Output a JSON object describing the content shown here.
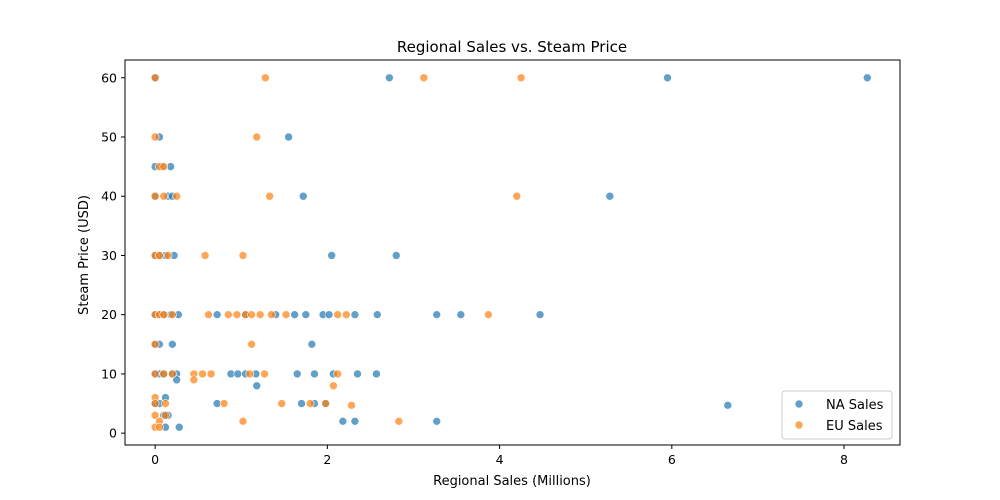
{
  "chart_data": {
    "type": "scatter",
    "title": "Regional Sales vs. Steam Price",
    "xlabel": "Regional Sales (Millions)",
    "ylabel": "Steam Price (USD)",
    "xlim": [
      -0.35,
      8.65
    ],
    "ylim": [
      -2,
      63
    ],
    "xticks": [
      0,
      2,
      4,
      6,
      8
    ],
    "yticks": [
      0,
      10,
      20,
      30,
      40,
      50,
      60
    ],
    "grid": false,
    "legend_position": "lower right",
    "series": [
      {
        "name": "NA Sales",
        "color": "#1f77b4",
        "points": [
          [
            0.0,
            60
          ],
          [
            8.27,
            60
          ],
          [
            5.95,
            60
          ],
          [
            2.72,
            60
          ],
          [
            0.05,
            50
          ],
          [
            1.55,
            50
          ],
          [
            0.0,
            45
          ],
          [
            0.08,
            45
          ],
          [
            0.18,
            45
          ],
          [
            0.0,
            40
          ],
          [
            0.15,
            40
          ],
          [
            0.2,
            40
          ],
          [
            1.72,
            40
          ],
          [
            5.28,
            40
          ],
          [
            0.0,
            30
          ],
          [
            0.05,
            30
          ],
          [
            0.12,
            30
          ],
          [
            0.22,
            30
          ],
          [
            2.05,
            30
          ],
          [
            2.8,
            30
          ],
          [
            0.0,
            20
          ],
          [
            0.05,
            20
          ],
          [
            0.1,
            20
          ],
          [
            0.18,
            20
          ],
          [
            0.27,
            20
          ],
          [
            0.72,
            20
          ],
          [
            1.05,
            20
          ],
          [
            1.4,
            20
          ],
          [
            1.62,
            20
          ],
          [
            1.75,
            20
          ],
          [
            1.95,
            20
          ],
          [
            2.02,
            20
          ],
          [
            2.32,
            20
          ],
          [
            2.58,
            20
          ],
          [
            3.27,
            20
          ],
          [
            3.55,
            20
          ],
          [
            4.47,
            20
          ],
          [
            0.0,
            15
          ],
          [
            0.05,
            15
          ],
          [
            0.2,
            15
          ],
          [
            1.82,
            15
          ],
          [
            0.0,
            10
          ],
          [
            0.05,
            10
          ],
          [
            0.1,
            10
          ],
          [
            0.2,
            10
          ],
          [
            0.25,
            10
          ],
          [
            0.88,
            10
          ],
          [
            0.96,
            10
          ],
          [
            1.05,
            10
          ],
          [
            1.17,
            10
          ],
          [
            1.65,
            10
          ],
          [
            1.85,
            10
          ],
          [
            2.07,
            10
          ],
          [
            2.35,
            10
          ],
          [
            2.57,
            10
          ],
          [
            0.25,
            9
          ],
          [
            1.18,
            8
          ],
          [
            0.12,
            6
          ],
          [
            0.0,
            5
          ],
          [
            0.05,
            5
          ],
          [
            0.72,
            5
          ],
          [
            1.7,
            5
          ],
          [
            1.85,
            5
          ],
          [
            1.98,
            5
          ],
          [
            0.15,
            3
          ],
          [
            0.1,
            3
          ],
          [
            2.18,
            2
          ],
          [
            2.32,
            2
          ],
          [
            3.27,
            2
          ],
          [
            0.12,
            1
          ],
          [
            0.28,
            1
          ],
          [
            6.65,
            4.7
          ]
        ]
      },
      {
        "name": "EU Sales",
        "color": "#ff7f0e",
        "points": [
          [
            0.0,
            60
          ],
          [
            1.28,
            60
          ],
          [
            3.12,
            60
          ],
          [
            4.25,
            60
          ],
          [
            0.0,
            50
          ],
          [
            1.18,
            50
          ],
          [
            0.05,
            45
          ],
          [
            0.1,
            45
          ],
          [
            0.0,
            40
          ],
          [
            0.1,
            40
          ],
          [
            0.25,
            40
          ],
          [
            1.33,
            40
          ],
          [
            4.2,
            40
          ],
          [
            0.0,
            30
          ],
          [
            0.05,
            30
          ],
          [
            0.15,
            30
          ],
          [
            0.58,
            30
          ],
          [
            1.02,
            30
          ],
          [
            0.0,
            20
          ],
          [
            0.05,
            20
          ],
          [
            0.1,
            20
          ],
          [
            0.2,
            20
          ],
          [
            0.62,
            20
          ],
          [
            0.85,
            20
          ],
          [
            0.95,
            20
          ],
          [
            1.05,
            20
          ],
          [
            1.12,
            20
          ],
          [
            1.22,
            20
          ],
          [
            1.35,
            20
          ],
          [
            1.52,
            20
          ],
          [
            2.12,
            20
          ],
          [
            2.22,
            20
          ],
          [
            3.87,
            20
          ],
          [
            0.0,
            15
          ],
          [
            1.12,
            15
          ],
          [
            0.0,
            10
          ],
          [
            0.1,
            10
          ],
          [
            0.2,
            10
          ],
          [
            0.45,
            10
          ],
          [
            0.55,
            10
          ],
          [
            0.65,
            10
          ],
          [
            1.1,
            10
          ],
          [
            1.27,
            10
          ],
          [
            2.12,
            10
          ],
          [
            0.45,
            9
          ],
          [
            2.07,
            8
          ],
          [
            0.0,
            6
          ],
          [
            0.12,
            5
          ],
          [
            0.0,
            5
          ],
          [
            0.8,
            5
          ],
          [
            1.47,
            5
          ],
          [
            1.8,
            5
          ],
          [
            1.98,
            5
          ],
          [
            2.28,
            4.7
          ],
          [
            0.0,
            3
          ],
          [
            0.12,
            3
          ],
          [
            0.05,
            2
          ],
          [
            1.02,
            2
          ],
          [
            2.83,
            2
          ],
          [
            0.0,
            1
          ],
          [
            0.05,
            1
          ]
        ]
      }
    ]
  }
}
